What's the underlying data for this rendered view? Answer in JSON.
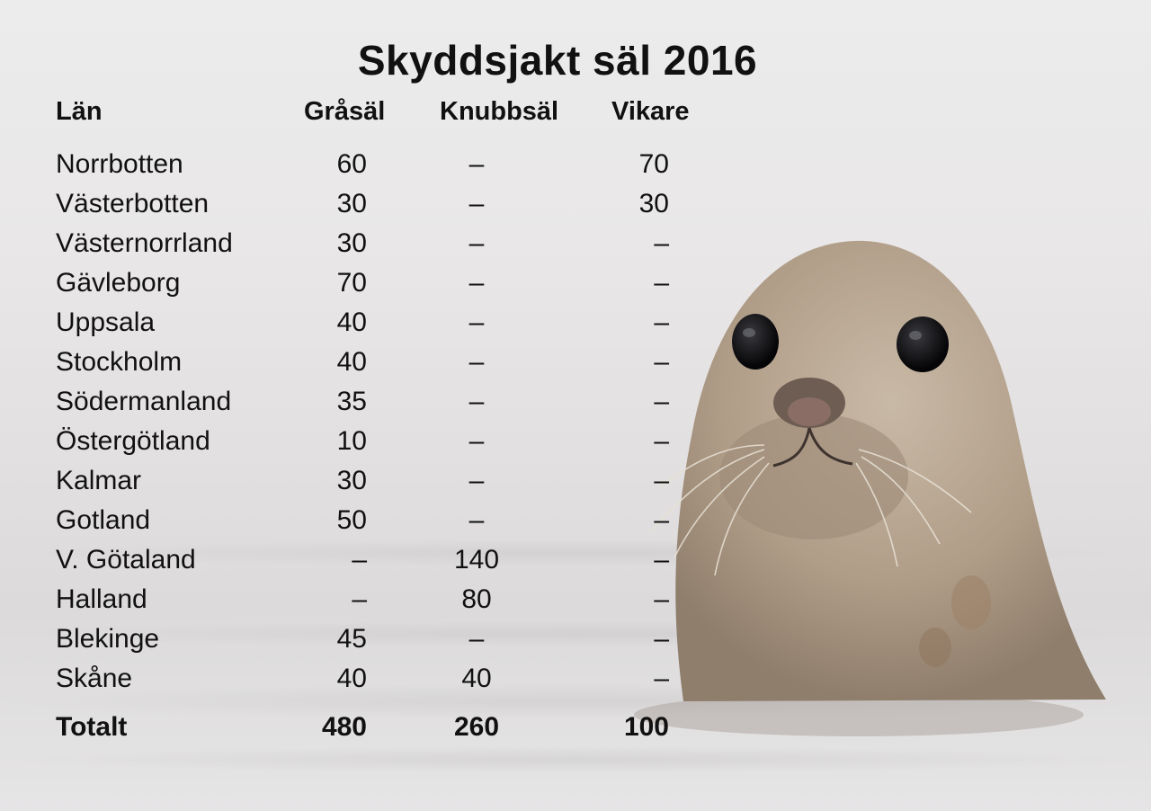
{
  "title": "Skyddsjakt säl 2016",
  "headers": {
    "lan": "Län",
    "grasal": "Gråsäl",
    "knubbsal": "Knubbsäl",
    "vikare": "Vikare"
  },
  "rows": [
    {
      "lan": "Norrbotten",
      "grasal": "60",
      "knubbsal": "–",
      "vikare": "70"
    },
    {
      "lan": "Västerbotten",
      "grasal": "30",
      "knubbsal": "–",
      "vikare": "30"
    },
    {
      "lan": "Västernorrland",
      "grasal": "30",
      "knubbsal": "–",
      "vikare": "–"
    },
    {
      "lan": "Gävleborg",
      "grasal": "70",
      "knubbsal": "–",
      "vikare": "–"
    },
    {
      "lan": "Uppsala",
      "grasal": "40",
      "knubbsal": "–",
      "vikare": "–"
    },
    {
      "lan": "Stockholm",
      "grasal": "40",
      "knubbsal": "–",
      "vikare": "–"
    },
    {
      "lan": "Södermanland",
      "grasal": "35",
      "knubbsal": "–",
      "vikare": "–"
    },
    {
      "lan": "Östergötland",
      "grasal": "10",
      "knubbsal": "–",
      "vikare": "–"
    },
    {
      "lan": "Kalmar",
      "grasal": "30",
      "knubbsal": "–",
      "vikare": "–"
    },
    {
      "lan": "Gotland",
      "grasal": "50",
      "knubbsal": "–",
      "vikare": "–"
    },
    {
      "lan": "V. Götaland",
      "grasal": "–",
      "knubbsal": "140",
      "vikare": "–"
    },
    {
      "lan": "Halland",
      "grasal": "–",
      "knubbsal": "80",
      "vikare": "–"
    },
    {
      "lan": "Blekinge",
      "grasal": "45",
      "knubbsal": "–",
      "vikare": "–"
    },
    {
      "lan": "Skåne",
      "grasal": "40",
      "knubbsal": "40",
      "vikare": "–"
    }
  ],
  "total": {
    "lan": "Totalt",
    "grasal": "480",
    "knubbsal": "260",
    "vikare": "100"
  },
  "colors": {
    "text": "#111111",
    "background": "#e6e5e6",
    "seal_fur": "#b9a996"
  },
  "photo": {
    "subject": "seal-head-icon"
  }
}
